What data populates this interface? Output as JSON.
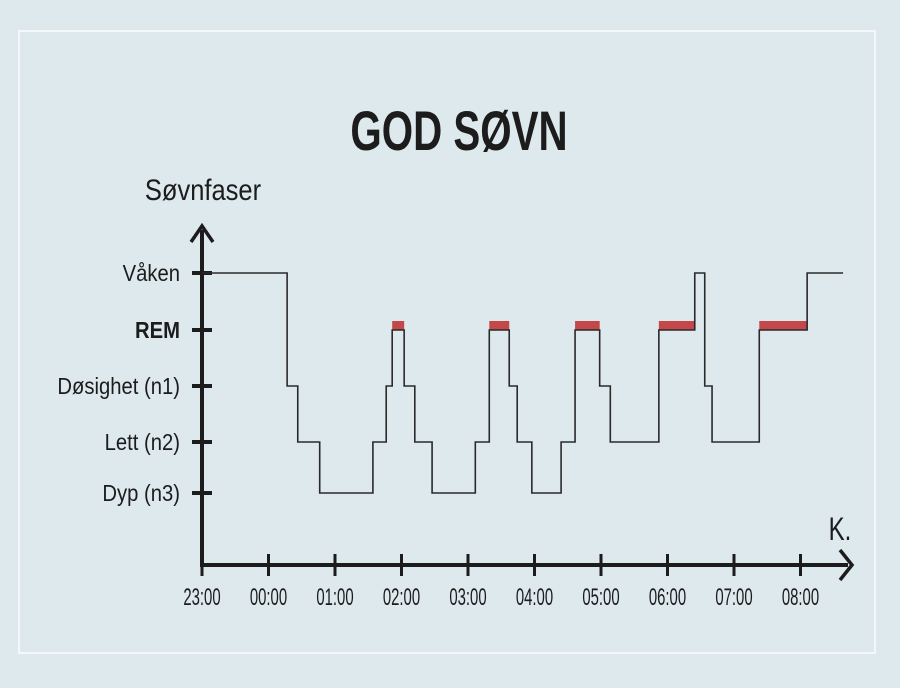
{
  "chart_data": {
    "type": "line",
    "subtype": "step-hypnogram",
    "title": "GOD SØVN",
    "ylabel": "Søvnfaser",
    "xlabel": "K.",
    "y_categories": [
      "Dyp (n3)",
      "Lett (n2)",
      "Døsighet (n1)",
      "REM",
      "Våken"
    ],
    "highlight_category": "REM",
    "x_ticks": [
      "23:00",
      "00:00",
      "01:00",
      "02:00",
      "03:00",
      "04:00",
      "05:00",
      "06:00",
      "07:00",
      "08:00"
    ],
    "x_unit": "hours since 23:00",
    "xlim": [
      0,
      9.64
    ],
    "segments": [
      [
        0.0,
        1.28,
        "Våken"
      ],
      [
        1.28,
        1.44,
        "Døsighet (n1)"
      ],
      [
        1.44,
        1.77,
        "Lett (n2)"
      ],
      [
        1.77,
        2.57,
        "Dyp (n3)"
      ],
      [
        2.57,
        2.77,
        "Lett (n2)"
      ],
      [
        2.77,
        2.86,
        "Døsighet (n1)"
      ],
      [
        2.86,
        3.04,
        "REM"
      ],
      [
        3.04,
        3.2,
        "Døsighet (n1)"
      ],
      [
        3.2,
        3.46,
        "Lett (n2)"
      ],
      [
        3.46,
        4.11,
        "Dyp (n3)"
      ],
      [
        4.11,
        4.32,
        "Lett (n2)"
      ],
      [
        4.32,
        4.62,
        "REM"
      ],
      [
        4.62,
        4.74,
        "Døsighet (n1)"
      ],
      [
        4.74,
        4.96,
        "Lett (n2)"
      ],
      [
        4.96,
        5.4,
        "Dyp (n3)"
      ],
      [
        5.4,
        5.61,
        "Lett (n2)"
      ],
      [
        5.61,
        5.98,
        "REM"
      ],
      [
        5.98,
        6.14,
        "Døsighet (n1)"
      ],
      [
        6.14,
        6.87,
        "Lett (n2)"
      ],
      [
        6.87,
        7.41,
        "REM"
      ],
      [
        7.41,
        7.56,
        "Våken"
      ],
      [
        7.56,
        7.67,
        "Døsighet (n1)"
      ],
      [
        7.67,
        8.38,
        "Lett (n2)"
      ],
      [
        8.38,
        9.1,
        "REM"
      ],
      [
        9.1,
        9.64,
        "Våken"
      ]
    ],
    "colors": {
      "line": "#2a2a2a",
      "rem": "#c4474a",
      "axis": "#1c1c1c",
      "background": "#dde9ed"
    }
  }
}
